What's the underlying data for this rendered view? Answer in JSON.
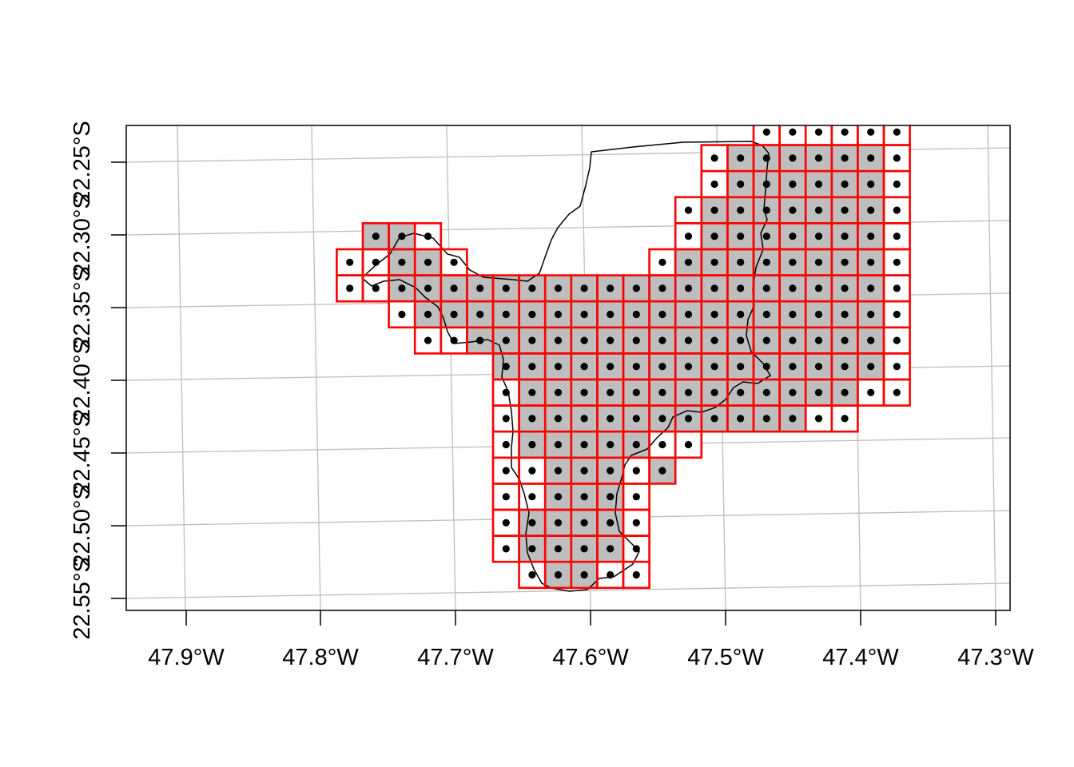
{
  "map": {
    "graticule_color": "#bebebe",
    "grid_cell_color": "#ff0000",
    "fill_color": "#bebebe",
    "boundary_color": "#000000",
    "point_color": "#000000",
    "x_labels": [
      "47.9°W",
      "47.8°W",
      "47.7°W",
      "47.6°W",
      "47.5°W",
      "47.4°W",
      "47.3°W"
    ],
    "y_labels": [
      "22.25°S",
      "22.30°S",
      "22.35°S",
      "22.40°S",
      "22.45°S",
      "22.50°S",
      "22.55°S"
    ],
    "grid_rows": [
      {
        "row": 0,
        "cols": [
          10,
          11,
          12,
          13,
          14,
          15
        ]
      },
      {
        "row": 1,
        "cols": [
          8,
          9,
          10,
          11,
          12,
          13,
          14,
          15
        ]
      },
      {
        "row": 2,
        "cols": [
          8,
          9,
          10,
          11,
          12,
          13,
          14,
          15
        ]
      },
      {
        "row": 3,
        "cols": [
          7,
          8,
          9,
          10,
          11,
          12,
          13,
          14,
          15
        ]
      },
      {
        "row": 4,
        "cols": [
          -5,
          -4,
          -3,
          7,
          8,
          9,
          10,
          11,
          12,
          13,
          14,
          15
        ]
      },
      {
        "row": 5,
        "cols": [
          -6,
          -5,
          -4,
          -3,
          -2,
          6,
          7,
          8,
          9,
          10,
          11,
          12,
          13,
          14,
          15
        ]
      },
      {
        "row": 6,
        "cols": [
          -6,
          -5,
          -4,
          -3,
          -2,
          -1,
          0,
          1,
          2,
          3,
          4,
          5,
          6,
          7,
          8,
          9,
          10,
          11,
          12,
          13,
          14,
          15
        ]
      },
      {
        "row": 7,
        "cols": [
          -4,
          -3,
          -2,
          -1,
          0,
          1,
          2,
          3,
          4,
          5,
          6,
          7,
          8,
          9,
          10,
          11,
          12,
          13,
          14,
          15
        ]
      },
      {
        "row": 8,
        "cols": [
          -3,
          -2,
          -1,
          0,
          1,
          2,
          3,
          4,
          5,
          6,
          7,
          8,
          9,
          10,
          11,
          12,
          13,
          14,
          15
        ]
      },
      {
        "row": 9,
        "cols": [
          0,
          1,
          2,
          3,
          4,
          5,
          6,
          7,
          8,
          9,
          10,
          11,
          12,
          13,
          14,
          15
        ]
      },
      {
        "row": 10,
        "cols": [
          0,
          1,
          2,
          3,
          4,
          5,
          6,
          7,
          8,
          9,
          10,
          11,
          12,
          13,
          14,
          15
        ]
      },
      {
        "row": 11,
        "cols": [
          0,
          1,
          2,
          3,
          4,
          5,
          6,
          7,
          8,
          9,
          10,
          11,
          12,
          13
        ]
      },
      {
        "row": 12,
        "cols": [
          0,
          1,
          2,
          3,
          4,
          5,
          6,
          7
        ]
      },
      {
        "row": 13,
        "cols": [
          0,
          1,
          2,
          3,
          4,
          5,
          6
        ]
      },
      {
        "row": 14,
        "cols": [
          0,
          1,
          2,
          3,
          4,
          5
        ]
      },
      {
        "row": 15,
        "cols": [
          0,
          1,
          2,
          3,
          4,
          5
        ]
      },
      {
        "row": 16,
        "cols": [
          0,
          1,
          2,
          3,
          4,
          5
        ]
      },
      {
        "row": 17,
        "cols": [
          1,
          2,
          3,
          4,
          5
        ]
      }
    ],
    "hollow_cells": [
      [
        0,
        10
      ],
      [
        0,
        11
      ],
      [
        0,
        12
      ],
      [
        0,
        13
      ],
      [
        0,
        14
      ],
      [
        0,
        15
      ],
      [
        1,
        8
      ],
      [
        1,
        15
      ],
      [
        2,
        8
      ],
      [
        2,
        15
      ],
      [
        3,
        7
      ],
      [
        3,
        15
      ],
      [
        4,
        -3
      ],
      [
        4,
        7
      ],
      [
        4,
        15
      ],
      [
        5,
        -6
      ],
      [
        5,
        -5
      ],
      [
        5,
        -2
      ],
      [
        5,
        6
      ],
      [
        5,
        15
      ],
      [
        6,
        -6
      ],
      [
        6,
        -5
      ],
      [
        6,
        15
      ],
      [
        7,
        -4
      ],
      [
        7,
        15
      ],
      [
        8,
        -3
      ],
      [
        8,
        -2
      ],
      [
        8,
        15
      ],
      [
        9,
        15
      ],
      [
        10,
        0
      ],
      [
        10,
        14
      ],
      [
        10,
        15
      ],
      [
        11,
        0
      ],
      [
        11,
        12
      ],
      [
        11,
        13
      ],
      [
        12,
        0
      ],
      [
        12,
        6
      ],
      [
        12,
        7
      ],
      [
        13,
        0
      ],
      [
        13,
        1
      ],
      [
        13,
        5
      ],
      [
        14,
        0
      ],
      [
        14,
        1
      ],
      [
        14,
        5
      ],
      [
        15,
        0
      ],
      [
        15,
        5
      ],
      [
        16,
        0
      ],
      [
        16,
        5
      ],
      [
        17,
        1
      ],
      [
        17,
        4
      ],
      [
        17,
        5
      ]
    ]
  }
}
